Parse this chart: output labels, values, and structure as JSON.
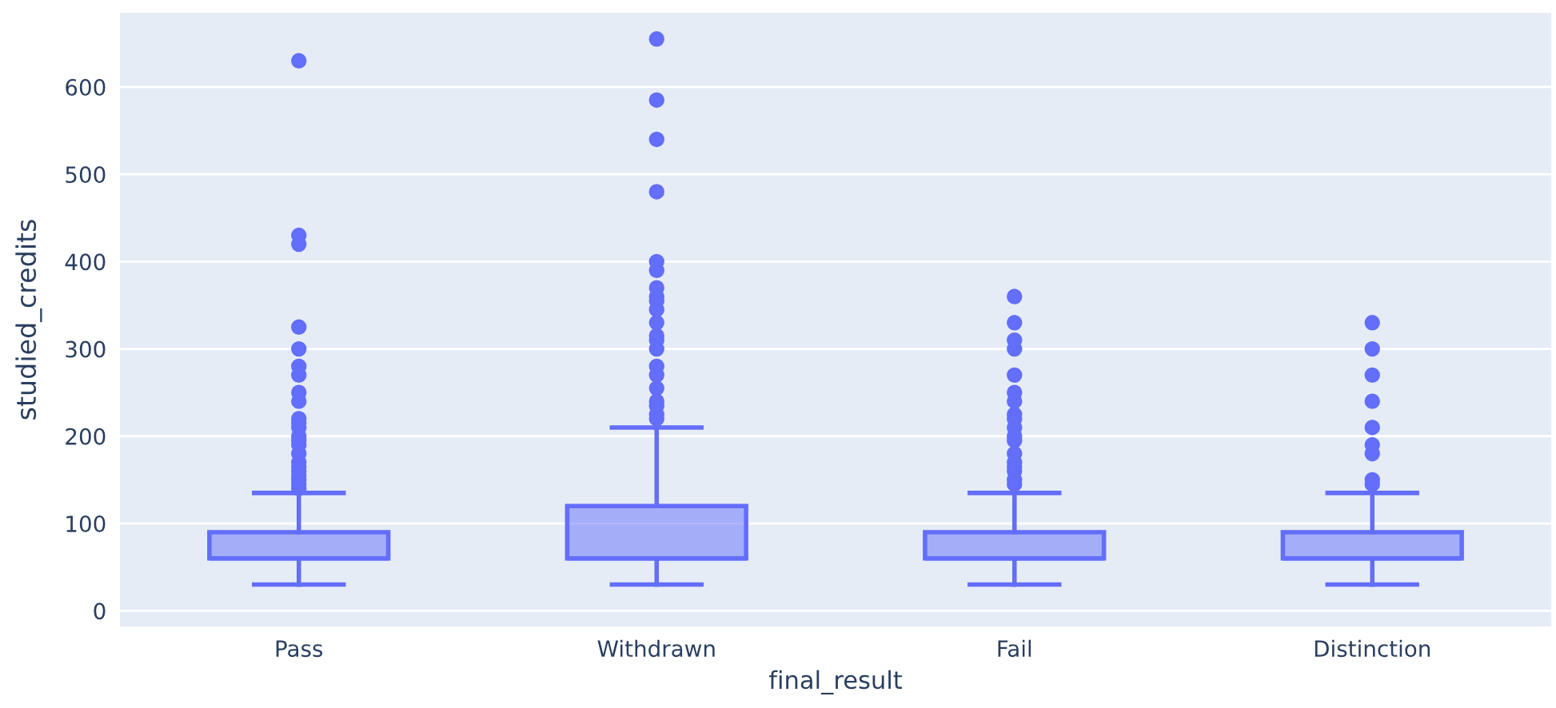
{
  "chart_data": {
    "type": "box",
    "xlabel": "final_result",
    "ylabel": "studied_credits",
    "categories": [
      "Pass",
      "Withdrawn",
      "Fail",
      "Distinction"
    ],
    "series": [
      {
        "color": "#636efa",
        "boxes": [
          {
            "low": 30,
            "q1": 60,
            "median": 60,
            "q3": 90,
            "high": 135,
            "outliers": [
              630,
              430,
              420,
              325,
              300,
              280,
              270,
              250,
              240,
              220,
              215,
              210,
              200,
              195,
              190,
              180,
              170,
              165,
              160,
              155,
              150,
              145,
              140
            ]
          },
          {
            "low": 30,
            "q1": 60,
            "median": 60,
            "q3": 120,
            "high": 210,
            "outliers": [
              655,
              585,
              540,
              480,
              400,
              390,
              370,
              360,
              355,
              345,
              330,
              315,
              310,
              300,
              280,
              270,
              255,
              240,
              235,
              225,
              220
            ]
          },
          {
            "low": 30,
            "q1": 60,
            "median": 60,
            "q3": 90,
            "high": 135,
            "outliers": [
              360,
              330,
              310,
              300,
              270,
              250,
              240,
              225,
              220,
              210,
              200,
              195,
              180,
              170,
              165,
              160,
              150,
              145
            ]
          },
          {
            "low": 30,
            "q1": 60,
            "median": 60,
            "q3": 90,
            "high": 135,
            "outliers": [
              330,
              300,
              270,
              240,
              210,
              190,
              180,
              150,
              145
            ]
          }
        ]
      }
    ],
    "ylim": [
      -18,
      685
    ],
    "yticks": [
      0,
      100,
      200,
      300,
      400,
      500,
      600
    ],
    "grid": "y"
  }
}
